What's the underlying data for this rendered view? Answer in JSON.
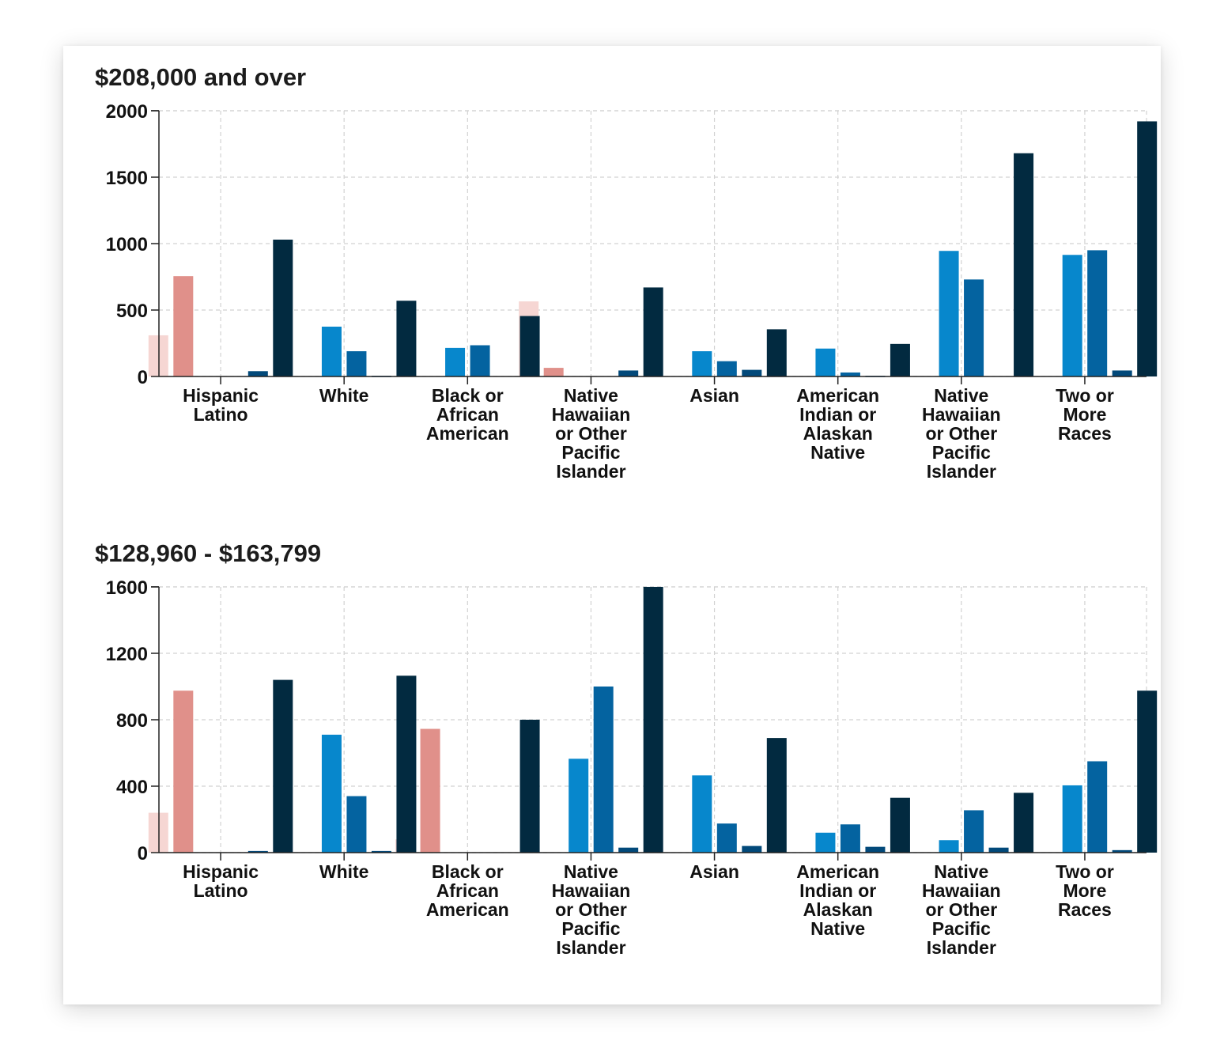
{
  "chart_data": [
    {
      "type": "bar",
      "title": "$208,000 and over",
      "categories": [
        "Hispanic Latino",
        "White",
        "Black or African American",
        "Native Hawaiian or Other Pacific Islander",
        "Asian",
        "American Indian or Alaskan Native",
        "Native Hawaiian or Other Pacific Islander",
        "Two or More Races"
      ],
      "series": [
        {
          "color": "#f6d6d3",
          "values": [
            310,
            0,
            0,
            565,
            0,
            0,
            0,
            0
          ]
        },
        {
          "color": "#e0908a",
          "values": [
            755,
            0,
            0,
            65,
            0,
            0,
            0,
            0
          ]
        },
        {
          "color": "#0787cc",
          "values": [
            0,
            375,
            215,
            0,
            190,
            210,
            945,
            915
          ]
        },
        {
          "color": "#0463a0",
          "values": [
            0,
            190,
            235,
            0,
            115,
            30,
            730,
            950
          ]
        },
        {
          "color": "#02497a",
          "values": [
            40,
            5,
            0,
            45,
            50,
            5,
            0,
            45
          ]
        },
        {
          "color": "#022a40",
          "values": [
            1030,
            570,
            455,
            670,
            355,
            245,
            1680,
            1920
          ]
        }
      ],
      "ylim": [
        0,
        2000
      ],
      "yticks": [
        0,
        500,
        1000,
        1500,
        2000
      ],
      "grid": true,
      "xlabel": "",
      "ylabel": ""
    },
    {
      "type": "bar",
      "title": "$128,960 - $163,799",
      "categories": [
        "Hispanic Latino",
        "White",
        "Black or African American",
        "Native Hawaiian or Other Pacific Islander",
        "Asian",
        "American Indian or Alaskan Native",
        "Native Hawaiian or Other Pacific Islander",
        "Two or More Races"
      ],
      "series": [
        {
          "color": "#f6d6d3",
          "values": [
            240,
            0,
            80,
            0,
            0,
            0,
            0,
            0
          ]
        },
        {
          "color": "#e0908a",
          "values": [
            975,
            0,
            745,
            0,
            0,
            0,
            0,
            0
          ]
        },
        {
          "color": "#0787cc",
          "values": [
            0,
            710,
            0,
            565,
            465,
            120,
            75,
            405
          ]
        },
        {
          "color": "#0463a0",
          "values": [
            0,
            340,
            0,
            1000,
            175,
            170,
            255,
            550
          ]
        },
        {
          "color": "#02497a",
          "values": [
            10,
            10,
            0,
            30,
            40,
            35,
            30,
            15
          ]
        },
        {
          "color": "#022a40",
          "values": [
            1040,
            1065,
            800,
            1600,
            690,
            330,
            360,
            975
          ]
        }
      ],
      "ylim": [
        0,
        1600
      ],
      "yticks": [
        0,
        400,
        800,
        1200,
        1600
      ],
      "grid": true,
      "xlabel": "",
      "ylabel": ""
    }
  ]
}
